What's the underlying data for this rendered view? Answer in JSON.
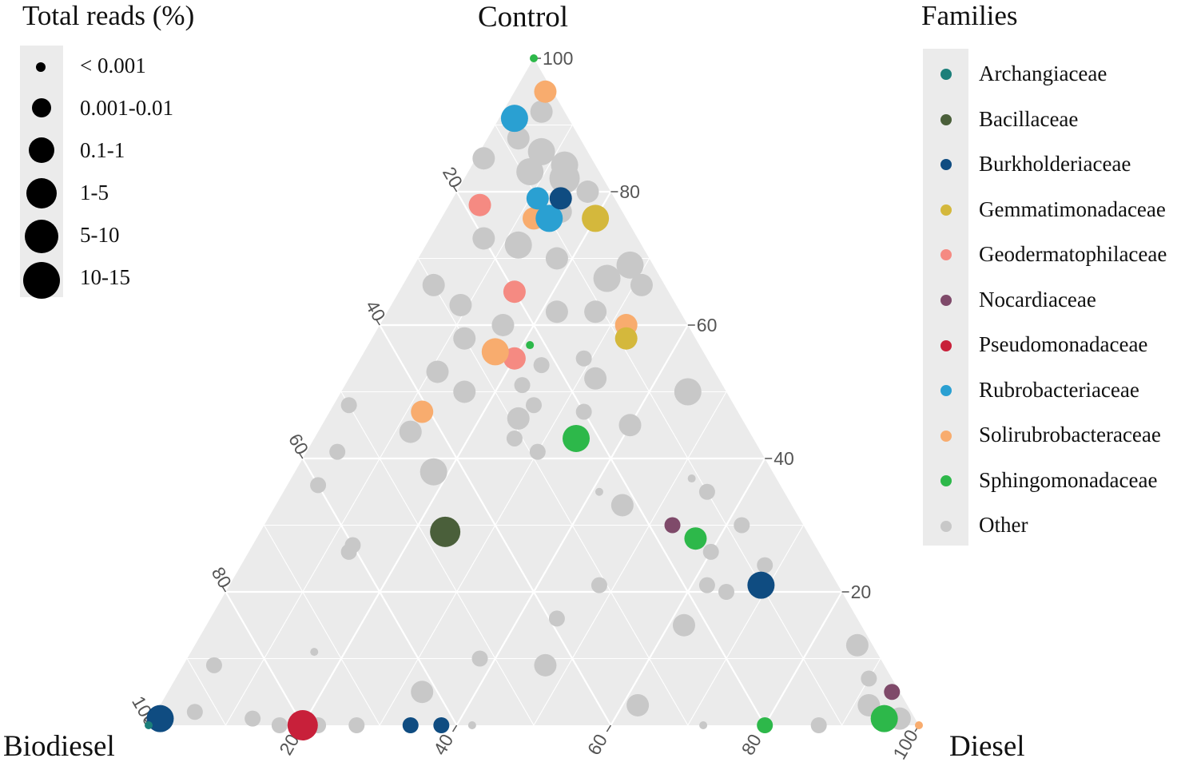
{
  "chart_data": {
    "type": "ternary-scatter",
    "axes": {
      "top": "Control",
      "left": "Biodiesel",
      "right": "Diesel"
    },
    "ticks": [
      "20",
      "40",
      "60",
      "80",
      "100"
    ],
    "size_legend": {
      "title": "Total reads (%)",
      "items": [
        "< 0.001",
        "0.001-0.01",
        "0.1-1",
        "1-5",
        "5-10",
        "10-15"
      ]
    },
    "color_legend": {
      "title": "Families",
      "items": [
        {
          "name": "Archangiaceae",
          "color": "#1b7f7a"
        },
        {
          "name": "Bacillaceae",
          "color": "#4a5f3a"
        },
        {
          "name": "Burkholderiaceae",
          "color": "#0f4c81"
        },
        {
          "name": "Gemmatimonadaceae",
          "color": "#d4b83c"
        },
        {
          "name": "Geodermatophilaceae",
          "color": "#f58a82"
        },
        {
          "name": "Nocardiaceae",
          "color": "#7f4a6a"
        },
        {
          "name": "Pseudomonadaceae",
          "color": "#c8203a"
        },
        {
          "name": "Rubrobacteriaceae",
          "color": "#2aa0d2"
        },
        {
          "name": "Solirubrobacteraceae",
          "color": "#f8ac6e"
        },
        {
          "name": "Sphingomonadaceae",
          "color": "#2db84a"
        },
        {
          "name": "Other",
          "color": "#c8c8c8"
        }
      ]
    },
    "points": [
      {
        "family": "Sphingomonadaceae",
        "control": 100,
        "biodiesel": 0,
        "diesel": 0,
        "size": 0
      },
      {
        "family": "Solirubrobacteraceae",
        "control": 95,
        "biodiesel": 1,
        "diesel": 4,
        "size": 2
      },
      {
        "family": "Rubrobacteriaceae",
        "control": 91,
        "biodiesel": 7,
        "diesel": 2,
        "size": 3
      },
      {
        "family": "Geodermatophilaceae",
        "control": 78,
        "biodiesel": 18,
        "diesel": 4,
        "size": 2
      },
      {
        "family": "Solirubrobacteraceae",
        "control": 76,
        "biodiesel": 12,
        "diesel": 12,
        "size": 2
      },
      {
        "family": "Rubrobacteriaceae",
        "control": 79,
        "biodiesel": 10,
        "diesel": 11,
        "size": 2
      },
      {
        "family": "Rubrobacteriaceae",
        "control": 76,
        "biodiesel": 10,
        "diesel": 14,
        "size": 3
      },
      {
        "family": "Burkholderiaceae",
        "control": 79,
        "biodiesel": 7,
        "diesel": 14,
        "size": 2
      },
      {
        "family": "Gemmatimonadaceae",
        "control": 76,
        "biodiesel": 4,
        "diesel": 20,
        "size": 3
      },
      {
        "family": "Geodermatophilaceae",
        "control": 65,
        "biodiesel": 20,
        "diesel": 15,
        "size": 2
      },
      {
        "family": "Solirubrobacteraceae",
        "control": 60,
        "biodiesel": 8,
        "diesel": 32,
        "size": 2
      },
      {
        "family": "Gemmatimonadaceae",
        "control": 58,
        "biodiesel": 9,
        "diesel": 33,
        "size": 2
      },
      {
        "family": "Sphingomonadaceae",
        "control": 57,
        "biodiesel": 22,
        "diesel": 21,
        "size": 0
      },
      {
        "family": "Geodermatophilaceae",
        "control": 55,
        "biodiesel": 25,
        "diesel": 20,
        "size": 2
      },
      {
        "family": "Solirubrobacteraceae",
        "control": 56,
        "biodiesel": 27,
        "diesel": 17,
        "size": 3
      },
      {
        "family": "Solirubrobacteraceae",
        "control": 47,
        "biodiesel": 41,
        "diesel": 12,
        "size": 2
      },
      {
        "family": "Sphingomonadaceae",
        "control": 43,
        "biodiesel": 23,
        "diesel": 34,
        "size": 3
      },
      {
        "family": "Bacillaceae",
        "control": 29,
        "biodiesel": 47,
        "diesel": 24,
        "size": 4
      },
      {
        "family": "Nocardiaceae",
        "control": 30,
        "biodiesel": 17,
        "diesel": 53,
        "size": 1
      },
      {
        "family": "Sphingomonadaceae",
        "control": 28,
        "biodiesel": 15,
        "diesel": 57,
        "size": 2
      },
      {
        "family": "Burkholderiaceae",
        "control": 21,
        "biodiesel": 10,
        "diesel": 69,
        "size": 3
      },
      {
        "family": "Nocardiaceae",
        "control": 5,
        "biodiesel": 1,
        "diesel": 94,
        "size": 1
      },
      {
        "family": "Sphingomonadaceae",
        "control": 1,
        "biodiesel": 4,
        "diesel": 95,
        "size": 3
      },
      {
        "family": "Sphingomonadaceae",
        "control": 0,
        "biodiesel": 20,
        "diesel": 80,
        "size": 1
      },
      {
        "family": "Solirubrobacteraceae",
        "control": 0,
        "biodiesel": 0,
        "diesel": 100,
        "size": 0
      },
      {
        "family": "Burkholderiaceae",
        "control": 1,
        "biodiesel": 98,
        "diesel": 1,
        "size": 3
      },
      {
        "family": "Pseudomonadaceae",
        "control": 0,
        "biodiesel": 80,
        "diesel": 20,
        "size": 4
      },
      {
        "family": "Burkholderiaceae",
        "control": 0,
        "biodiesel": 66,
        "diesel": 34,
        "size": 1
      },
      {
        "family": "Burkholderiaceae",
        "control": 0,
        "biodiesel": 62,
        "diesel": 38,
        "size": 1
      },
      {
        "family": "Archangiaceae",
        "control": 0,
        "biodiesel": 100,
        "diesel": 0,
        "size": 0
      },
      {
        "family": "Other",
        "control": 92,
        "biodiesel": 3,
        "diesel": 5,
        "size": 2
      },
      {
        "family": "Other",
        "control": 88,
        "biodiesel": 8,
        "diesel": 4,
        "size": 2
      },
      {
        "family": "Other",
        "control": 86,
        "biodiesel": 6,
        "diesel": 8,
        "size": 3
      },
      {
        "family": "Other",
        "control": 84,
        "biodiesel": 4,
        "diesel": 12,
        "size": 3
      },
      {
        "family": "Other",
        "control": 83,
        "biodiesel": 9,
        "diesel": 8,
        "size": 3
      },
      {
        "family": "Other",
        "control": 82,
        "biodiesel": 5,
        "diesel": 13,
        "size": 4
      },
      {
        "family": "Other",
        "control": 80,
        "biodiesel": 3,
        "diesel": 17,
        "size": 2
      },
      {
        "family": "Other",
        "control": 85,
        "biodiesel": 14,
        "diesel": 1,
        "size": 2
      },
      {
        "family": "Other",
        "control": 77,
        "biodiesel": 8,
        "diesel": 15,
        "size": 2
      },
      {
        "family": "Other",
        "control": 73,
        "biodiesel": 20,
        "diesel": 7,
        "size": 2
      },
      {
        "family": "Other",
        "control": 72,
        "biodiesel": 16,
        "diesel": 12,
        "size": 3
      },
      {
        "family": "Other",
        "control": 70,
        "biodiesel": 12,
        "diesel": 18,
        "size": 2
      },
      {
        "family": "Other",
        "control": 69,
        "biodiesel": 3,
        "diesel": 28,
        "size": 3
      },
      {
        "family": "Other",
        "control": 67,
        "biodiesel": 7,
        "diesel": 26,
        "size": 3
      },
      {
        "family": "Other",
        "control": 66,
        "biodiesel": 30,
        "diesel": 4,
        "size": 2
      },
      {
        "family": "Other",
        "control": 66,
        "biodiesel": 3,
        "diesel": 31,
        "size": 2
      },
      {
        "family": "Other",
        "control": 63,
        "biodiesel": 28,
        "diesel": 9,
        "size": 2
      },
      {
        "family": "Other",
        "control": 62,
        "biodiesel": 16,
        "diesel": 22,
        "size": 2
      },
      {
        "family": "Other",
        "control": 62,
        "biodiesel": 11,
        "diesel": 27,
        "size": 2
      },
      {
        "family": "Other",
        "control": 60,
        "biodiesel": 24,
        "diesel": 16,
        "size": 2
      },
      {
        "family": "Other",
        "control": 58,
        "biodiesel": 30,
        "diesel": 12,
        "size": 2
      },
      {
        "family": "Other",
        "control": 55,
        "biodiesel": 16,
        "diesel": 29,
        "size": 1
      },
      {
        "family": "Other",
        "control": 54,
        "biodiesel": 22,
        "diesel": 24,
        "size": 1
      },
      {
        "family": "Other",
        "control": 53,
        "biodiesel": 36,
        "diesel": 11,
        "size": 2
      },
      {
        "family": "Other",
        "control": 52,
        "biodiesel": 16,
        "diesel": 32,
        "size": 2
      },
      {
        "family": "Other",
        "control": 51,
        "biodiesel": 26,
        "diesel": 23,
        "size": 1
      },
      {
        "family": "Other",
        "control": 50,
        "biodiesel": 5,
        "diesel": 45,
        "size": 3
      },
      {
        "family": "Other",
        "control": 50,
        "biodiesel": 34,
        "diesel": 16,
        "size": 2
      },
      {
        "family": "Other",
        "control": 48,
        "biodiesel": 26,
        "diesel": 26,
        "size": 1
      },
      {
        "family": "Other",
        "control": 48,
        "biodiesel": 50,
        "diesel": 2,
        "size": 1
      },
      {
        "family": "Other",
        "control": 47,
        "biodiesel": 20,
        "diesel": 33,
        "size": 1
      },
      {
        "family": "Other",
        "control": 46,
        "biodiesel": 29,
        "diesel": 25,
        "size": 2
      },
      {
        "family": "Other",
        "control": 45,
        "biodiesel": 15,
        "diesel": 40,
        "size": 2
      },
      {
        "family": "Other",
        "control": 44,
        "biodiesel": 44,
        "diesel": 12,
        "size": 2
      },
      {
        "family": "Other",
        "control": 43,
        "biodiesel": 31,
        "diesel": 26,
        "size": 1
      },
      {
        "family": "Other",
        "control": 41,
        "biodiesel": 29,
        "diesel": 30,
        "size": 1
      },
      {
        "family": "Other",
        "control": 41,
        "biodiesel": 55,
        "diesel": 4,
        "size": 1
      },
      {
        "family": "Other",
        "control": 38,
        "biodiesel": 44,
        "diesel": 18,
        "size": 3
      },
      {
        "family": "Other",
        "control": 37,
        "biodiesel": 11,
        "diesel": 52,
        "size": 0
      },
      {
        "family": "Other",
        "control": 35,
        "biodiesel": 24,
        "diesel": 41,
        "size": 0
      },
      {
        "family": "Other",
        "control": 36,
        "biodiesel": 60,
        "diesel": 4,
        "size": 1
      },
      {
        "family": "Other",
        "control": 35,
        "biodiesel": 10,
        "diesel": 55,
        "size": 1
      },
      {
        "family": "Other",
        "control": 33,
        "biodiesel": 22,
        "diesel": 45,
        "size": 2
      },
      {
        "family": "Other",
        "control": 30,
        "biodiesel": 8,
        "diesel": 62,
        "size": 1
      },
      {
        "family": "Other",
        "control": 27,
        "biodiesel": 60,
        "diesel": 13,
        "size": 1
      },
      {
        "family": "Other",
        "control": 26,
        "biodiesel": 61,
        "diesel": 13,
        "size": 1
      },
      {
        "family": "Other",
        "control": 26,
        "biodiesel": 14,
        "diesel": 60,
        "size": 1
      },
      {
        "family": "Other",
        "control": 24,
        "biodiesel": 8,
        "diesel": 68,
        "size": 1
      },
      {
        "family": "Other",
        "control": 21,
        "biodiesel": 31,
        "diesel": 48,
        "size": 1
      },
      {
        "family": "Other",
        "control": 21,
        "biodiesel": 17,
        "diesel": 62,
        "size": 1
      },
      {
        "family": "Other",
        "control": 20,
        "biodiesel": 15,
        "diesel": 65,
        "size": 1
      },
      {
        "family": "Other",
        "control": 16,
        "biodiesel": 39,
        "diesel": 45,
        "size": 1
      },
      {
        "family": "Other",
        "control": 15,
        "biodiesel": 23,
        "diesel": 62,
        "size": 2
      },
      {
        "family": "Other",
        "control": 12,
        "biodiesel": 2,
        "diesel": 86,
        "size": 2
      },
      {
        "family": "Other",
        "control": 11,
        "biodiesel": 73,
        "diesel": 16,
        "size": 0
      },
      {
        "family": "Other",
        "control": 10,
        "biodiesel": 52,
        "diesel": 38,
        "size": 1
      },
      {
        "family": "Other",
        "control": 9,
        "biodiesel": 87,
        "diesel": 4,
        "size": 1
      },
      {
        "family": "Other",
        "control": 9,
        "biodiesel": 44,
        "diesel": 47,
        "size": 2
      },
      {
        "family": "Other",
        "control": 7,
        "biodiesel": 3,
        "diesel": 90,
        "size": 1
      },
      {
        "family": "Other",
        "control": 5,
        "biodiesel": 62,
        "diesel": 33,
        "size": 2
      },
      {
        "family": "Other",
        "control": 3,
        "biodiesel": 5,
        "diesel": 92,
        "size": 2
      },
      {
        "family": "Other",
        "control": 3,
        "biodiesel": 35,
        "diesel": 62,
        "size": 2
      },
      {
        "family": "Other",
        "control": 2,
        "biodiesel": 93,
        "diesel": 5,
        "size": 1
      },
      {
        "family": "Other",
        "control": 1,
        "biodiesel": 86,
        "diesel": 13,
        "size": 1
      },
      {
        "family": "Other",
        "control": 1,
        "biodiesel": 2,
        "diesel": 97,
        "size": 2
      },
      {
        "family": "Other",
        "control": 0,
        "biodiesel": 83,
        "diesel": 17,
        "size": 1
      },
      {
        "family": "Other",
        "control": 0,
        "biodiesel": 78,
        "diesel": 22,
        "size": 1
      },
      {
        "family": "Other",
        "control": 0,
        "biodiesel": 73,
        "diesel": 27,
        "size": 1
      },
      {
        "family": "Other",
        "control": 0,
        "biodiesel": 58,
        "diesel": 42,
        "size": 0
      },
      {
        "family": "Other",
        "control": 0,
        "biodiesel": 28,
        "diesel": 72,
        "size": 0
      },
      {
        "family": "Other",
        "control": 0,
        "biodiesel": 13,
        "diesel": 87,
        "size": 1
      }
    ]
  }
}
